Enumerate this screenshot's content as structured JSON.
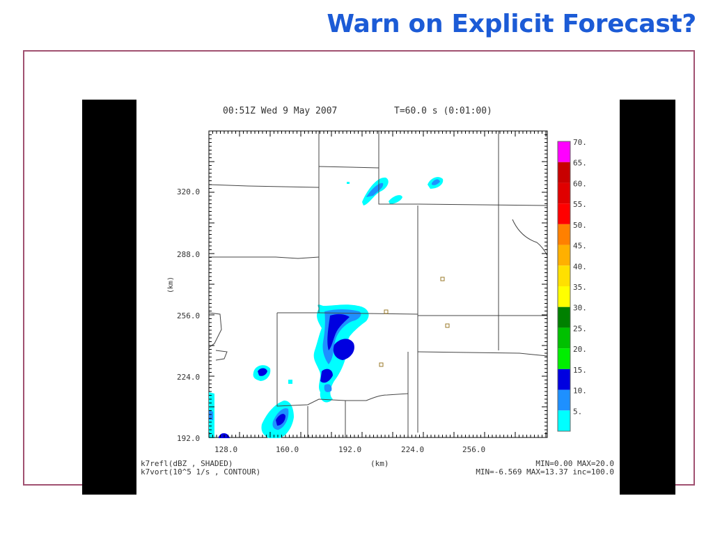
{
  "slide": {
    "title": "Warn on Explicit Forecast?"
  },
  "figure": {
    "header_time": "00:51Z  Wed   9 May 2007",
    "header_step": "T=60.0 s (0:01:00)",
    "y_axis_label": "(km)",
    "x_axis_label": "(km)",
    "y_ticks": [
      "320.0",
      "288.0",
      "256.0",
      "224.0",
      "192.0"
    ],
    "x_ticks": [
      "128.0",
      "160.0",
      "192.0",
      "224.0",
      "256.0"
    ],
    "field1_label": "k7refl(dBZ , SHADED)",
    "field2_label": "k7vort(10^5 1/s , CONTOUR)",
    "field1_stats": "MIN=0.00  MAX=20.0",
    "field2_stats": "MIN=-6.569  MAX=13.37  inc=100.0",
    "colorbar": [
      {
        "label": "70.",
        "color": "#ff00ff"
      },
      {
        "label": "65.",
        "color": "#c80000"
      },
      {
        "label": "60.",
        "color": "#e00000"
      },
      {
        "label": "55.",
        "color": "#ff0000"
      },
      {
        "label": "50.",
        "color": "#ff8000"
      },
      {
        "label": "45.",
        "color": "#ffb000"
      },
      {
        "label": "40.",
        "color": "#ffe000"
      },
      {
        "label": "35.",
        "color": "#ffff00"
      },
      {
        "label": "30.",
        "color": "#008000"
      },
      {
        "label": "25.",
        "color": "#00c000"
      },
      {
        "label": "20.",
        "color": "#00ee00"
      },
      {
        "label": "15.",
        "color": "#0000e0"
      },
      {
        "label": "10.",
        "color": "#1e90ff"
      },
      {
        "label": "5.",
        "color": "#00ffff"
      }
    ]
  }
}
